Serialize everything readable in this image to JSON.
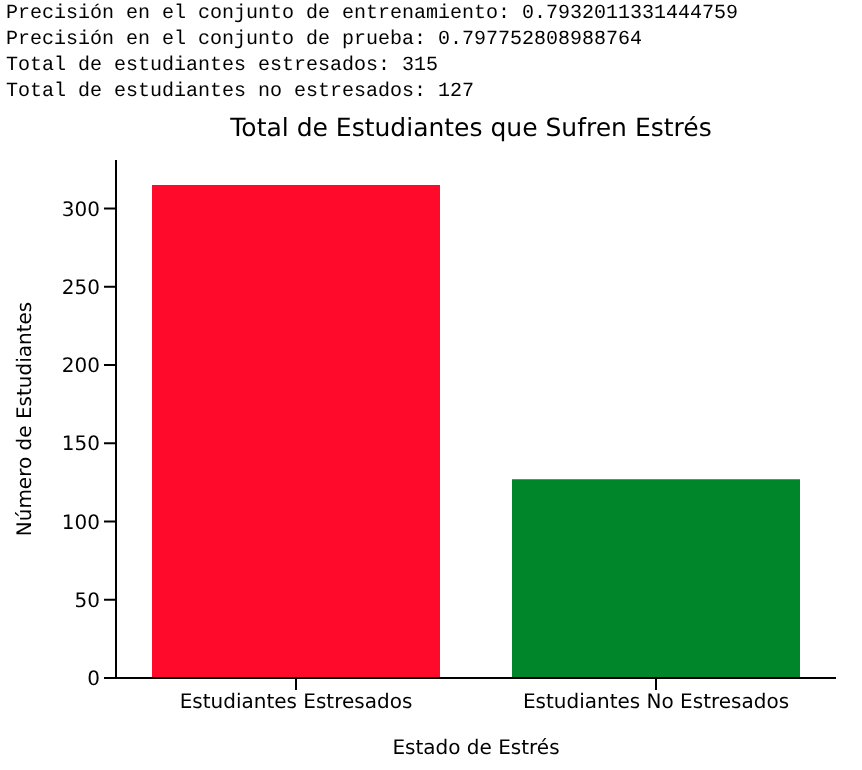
{
  "chart_data": {
    "type": "bar",
    "title": "Total de Estudiantes que Sufren Estrés",
    "xlabel": "Estado de Estrés",
    "ylabel": "Número de Estudiantes",
    "categories": [
      "Estudiantes Estresados",
      "Estudiantes No Estresados"
    ],
    "values": [
      315,
      127
    ],
    "colors": [
      "#ff0a2a",
      "#00862a"
    ],
    "ylim": [
      0,
      331
    ],
    "yticks": [
      0,
      50,
      100,
      150,
      200,
      250,
      300
    ],
    "grid": false,
    "annotations": [
      "Precisión en el conjunto de entrenamiento: 0.7932011331444759",
      "Precisión en el conjunto de prueba: 0.797752808988764",
      "Total de estudiantes estresados: 315",
      "Total de estudiantes no estresados: 127"
    ]
  }
}
